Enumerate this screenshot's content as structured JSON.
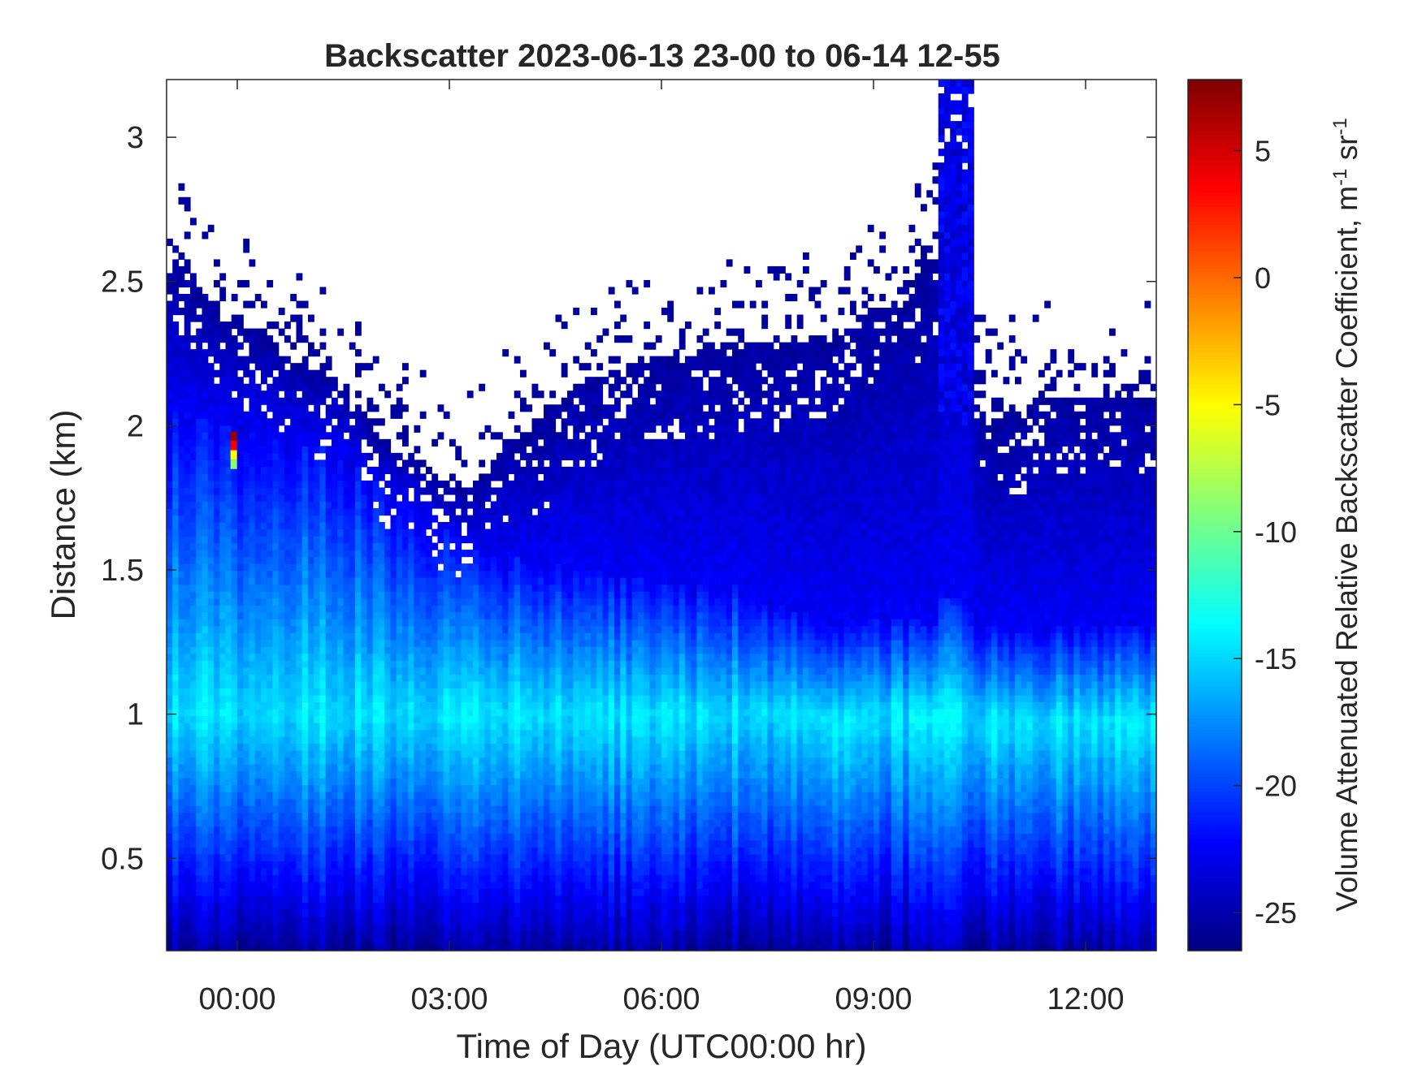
{
  "chart_data": {
    "type": "heatmap",
    "title": "Backscatter 2023-06-13 23-00 to 06-14 12-55",
    "xlabel": "Time of Day (UTC00:00 hr)",
    "ylabel": "Distance (km)",
    "colorbar_label": "Volume Attenuated Relative Backscatter Coefficient, m",
    "colorbar_label_units": [
      {
        "base": "-1",
        "super": true
      },
      {
        "base": " sr",
        "super": false
      },
      {
        "base": "-1",
        "super": true
      }
    ],
    "x_hours": [
      -1.0,
      13.0
    ],
    "ylim": [
      0.18,
      3.2
    ],
    "clim": [
      -26.5,
      7.8
    ],
    "colormap": "jet",
    "x_ticks": [
      {
        "h": 0,
        "label": "00:00"
      },
      {
        "h": 3,
        "label": "03:00"
      },
      {
        "h": 6,
        "label": "06:00"
      },
      {
        "h": 9,
        "label": "09:00"
      },
      {
        "h": 12,
        "label": "12:00"
      }
    ],
    "y_ticks": [
      {
        "v": 0.5,
        "label": "0.5"
      },
      {
        "v": 1.0,
        "label": "1"
      },
      {
        "v": 1.5,
        "label": "1.5"
      },
      {
        "v": 2.0,
        "label": "2"
      },
      {
        "v": 2.5,
        "label": "2.5"
      },
      {
        "v": 3.0,
        "label": "3"
      }
    ],
    "c_ticks": [
      {
        "v": -25,
        "label": "-25"
      },
      {
        "v": -20,
        "label": "-20"
      },
      {
        "v": -15,
        "label": "-15"
      },
      {
        "v": -10,
        "label": "-10"
      },
      {
        "v": -5,
        "label": "-5"
      },
      {
        "v": 0,
        "label": "0"
      },
      {
        "v": 5,
        "label": "5"
      }
    ],
    "signal_top_km": [
      {
        "h": -1.0,
        "km": 2.55
      },
      {
        "h": -0.6,
        "km": 2.5
      },
      {
        "h": 0.0,
        "km": 2.35
      },
      {
        "h": 0.5,
        "km": 2.3
      },
      {
        "h": 1.0,
        "km": 2.2
      },
      {
        "h": 1.5,
        "km": 2.15
      },
      {
        "h": 2.0,
        "km": 1.95
      },
      {
        "h": 2.5,
        "km": 1.9
      },
      {
        "h": 3.0,
        "km": 1.78
      },
      {
        "h": 3.4,
        "km": 1.8
      },
      {
        "h": 3.8,
        "km": 1.95
      },
      {
        "h": 4.3,
        "km": 2.0
      },
      {
        "h": 4.8,
        "km": 2.15
      },
      {
        "h": 5.5,
        "km": 2.2
      },
      {
        "h": 6.0,
        "km": 2.25
      },
      {
        "h": 7.0,
        "km": 2.27
      },
      {
        "h": 8.0,
        "km": 2.3
      },
      {
        "h": 8.8,
        "km": 2.35
      },
      {
        "h": 9.5,
        "km": 2.5
      },
      {
        "h": 10.0,
        "km": 2.6
      },
      {
        "h": 10.4,
        "km": 2.2
      },
      {
        "h": 10.6,
        "km": 2.0
      },
      {
        "h": 11.0,
        "km": 2.05
      },
      {
        "h": 11.5,
        "km": 2.1
      },
      {
        "h": 12.0,
        "km": 2.1
      },
      {
        "h": 13.0,
        "km": 2.1
      }
    ],
    "plume": {
      "h_start": 9.95,
      "h_end": 10.45,
      "top_km": 3.2
    },
    "boundary_layer_top_km": [
      {
        "h": -1.0,
        "km": 2.05
      },
      {
        "h": 0.0,
        "km": 2.0
      },
      {
        "h": 1.5,
        "km": 1.9
      },
      {
        "h": 2.5,
        "km": 1.7
      },
      {
        "h": 3.5,
        "km": 1.55
      },
      {
        "h": 5.0,
        "km": 1.5
      },
      {
        "h": 6.0,
        "km": 1.45
      },
      {
        "h": 7.0,
        "km": 1.45
      },
      {
        "h": 8.0,
        "km": 1.35
      },
      {
        "h": 8.5,
        "km": 1.28
      },
      {
        "h": 9.0,
        "km": 1.35
      },
      {
        "h": 10.0,
        "km": 1.3
      },
      {
        "h": 11.0,
        "km": 1.3
      },
      {
        "h": 12.0,
        "km": 1.3
      },
      {
        "h": 13.0,
        "km": 1.3
      }
    ],
    "aerosol_peak_value": -14.5,
    "aerosol_peak_km": 1.0,
    "surface_value": -25.5,
    "free_trop_value": -25.5,
    "hotspot": {
      "h": -0.05,
      "km_min": 1.85,
      "km_max": 1.98,
      "values": [
        7.0,
        4.0,
        -5.0,
        -9.0
      ]
    }
  }
}
